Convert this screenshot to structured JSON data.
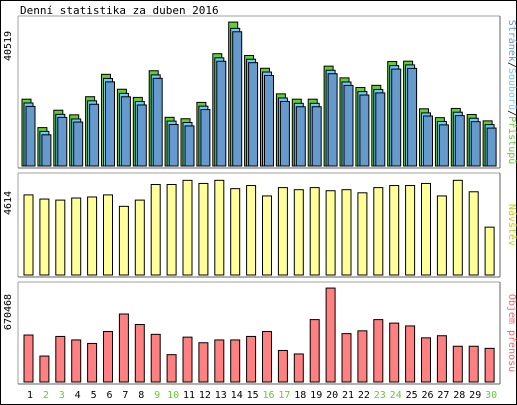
{
  "chart_data": [
    {
      "type": "bar",
      "title": "Denní statistika za duben 2016",
      "ymax_label": "40519",
      "legend": {
        "parts": [
          "Stránek",
          "/",
          "Souborů",
          "/",
          "Přístupů"
        ],
        "colors": [
          "#6699cc",
          "#000000",
          "#66ccff",
          "#000000",
          "#66cc33"
        ]
      },
      "categories": [
        "1",
        "2",
        "3",
        "4",
        "5",
        "6",
        "7",
        "8",
        "9",
        "10",
        "11",
        "12",
        "13",
        "14",
        "15",
        "16",
        "17",
        "18",
        "19",
        "20",
        "21",
        "22",
        "23",
        "24",
        "25",
        "26",
        "27",
        "28",
        "29",
        "30"
      ],
      "weekend_days": [
        "2",
        "3",
        "9",
        "10",
        "16",
        "17",
        "23",
        "24",
        "30"
      ],
      "ylim": [
        0,
        40519
      ],
      "series": [
        {
          "name": "Přístupů",
          "color": "#66cc33",
          "values": [
            18800,
            10800,
            15700,
            14400,
            19500,
            25800,
            21600,
            19300,
            26800,
            13700,
            13300,
            17900,
            31600,
            40500,
            31100,
            27500,
            20300,
            18800,
            18800,
            28100,
            24800,
            22100,
            22700,
            29400,
            29500,
            16100,
            13600,
            16200,
            14500,
            12700
          ]
        },
        {
          "name": "Souborů",
          "color": "#66ccff",
          "values": [
            18300,
            10300,
            15100,
            13800,
            18900,
            25200,
            21000,
            18700,
            26200,
            13200,
            12800,
            17400,
            31000,
            39300,
            30600,
            27000,
            19700,
            18200,
            18200,
            27500,
            24200,
            21500,
            22100,
            28800,
            29000,
            15500,
            13100,
            15700,
            14000,
            12200
          ]
        },
        {
          "name": "Stránek",
          "color": "#6699cc",
          "values": [
            17900,
            9900,
            14800,
            13500,
            18500,
            24800,
            20600,
            18300,
            25800,
            12800,
            12400,
            17000,
            30600,
            38900,
            30200,
            26600,
            19300,
            17800,
            17800,
            27100,
            23800,
            21100,
            21700,
            28400,
            28600,
            15200,
            12700,
            15300,
            13600,
            11800
          ]
        }
      ]
    },
    {
      "type": "bar",
      "ymax_label": "4614",
      "legend": {
        "parts": [
          "Návštěv"
        ],
        "colors": [
          "#cccc00"
        ]
      },
      "categories": [
        "1",
        "2",
        "3",
        "4",
        "5",
        "6",
        "7",
        "8",
        "9",
        "10",
        "11",
        "12",
        "13",
        "14",
        "15",
        "16",
        "17",
        "18",
        "19",
        "20",
        "21",
        "22",
        "23",
        "24",
        "25",
        "26",
        "27",
        "28",
        "29",
        "30"
      ],
      "ylim": [
        0,
        4614
      ],
      "series": [
        {
          "name": "Návštěv",
          "color": "#ffff99",
          "values": [
            3850,
            3650,
            3600,
            3700,
            3750,
            3850,
            3300,
            3600,
            4350,
            4350,
            4550,
            4400,
            4550,
            4150,
            4300,
            3800,
            4200,
            4100,
            4200,
            4050,
            4100,
            3950,
            4200,
            4300,
            4300,
            4400,
            3800,
            4550,
            4000,
            2300
          ]
        }
      ]
    },
    {
      "type": "bar",
      "ymax_label": "670468",
      "legend": {
        "parts": [
          "Objem přenosu"
        ],
        "colors": [
          "#ff6666"
        ]
      },
      "categories": [
        "1",
        "2",
        "3",
        "4",
        "5",
        "6",
        "7",
        "8",
        "9",
        "10",
        "11",
        "12",
        "13",
        "14",
        "15",
        "16",
        "17",
        "18",
        "19",
        "20",
        "21",
        "22",
        "23",
        "24",
        "25",
        "26",
        "27",
        "28",
        "29",
        "30"
      ],
      "ylim": [
        0,
        670468
      ],
      "series": [
        {
          "name": "Objem přenosu",
          "color": "#ff8080",
          "values": [
            335000,
            185000,
            325000,
            300000,
            275000,
            360000,
            485000,
            410000,
            340000,
            195000,
            320000,
            280000,
            300000,
            300000,
            325000,
            360000,
            225000,
            200000,
            445000,
            670000,
            345000,
            365000,
            445000,
            420000,
            400000,
            315000,
            330000,
            255000,
            255000,
            240000
          ]
        }
      ]
    }
  ]
}
